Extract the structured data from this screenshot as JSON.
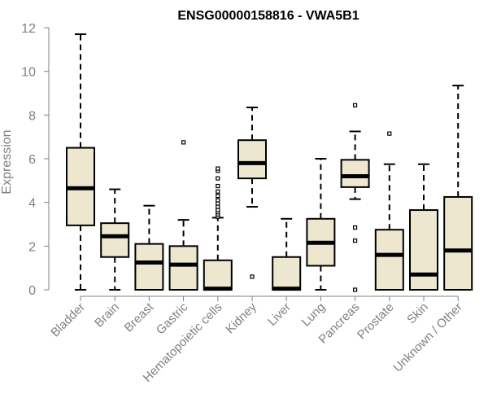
{
  "chart_data": {
    "type": "boxplot",
    "title": "ENSG00000158816 - VWA5B1",
    "xlabel": "",
    "ylabel": "Expression",
    "ylim": [
      0,
      12
    ],
    "yticks": [
      0,
      2,
      4,
      6,
      8,
      10,
      12
    ],
    "box_fill": "#ede7cf",
    "box_stroke": "#000000",
    "axis_color": "#808080",
    "categories": [
      {
        "name": "Bladder",
        "whisker_low": 0,
        "q1": 2.95,
        "median": 4.65,
        "q3": 6.5,
        "whisker_high": 11.7,
        "outliers": []
      },
      {
        "name": "Brain",
        "whisker_low": 0,
        "q1": 1.5,
        "median": 2.45,
        "q3": 3.05,
        "whisker_high": 4.6,
        "outliers": []
      },
      {
        "name": "Breast",
        "whisker_low": 0,
        "q1": 0,
        "median": 1.25,
        "q3": 2.1,
        "whisker_high": 3.85,
        "outliers": []
      },
      {
        "name": "Gastric",
        "whisker_low": 0,
        "q1": 0,
        "median": 1.15,
        "q3": 2.0,
        "whisker_high": 3.2,
        "outliers": [
          6.75
        ]
      },
      {
        "name": "Hematopoietic cells",
        "whisker_low": 0,
        "q1": 0,
        "median": 0.05,
        "q3": 1.35,
        "whisker_high": 3.3,
        "outliers": [
          3.35,
          3.45,
          3.55,
          3.65,
          3.8,
          3.95,
          4.1,
          4.3,
          4.5,
          4.75,
          5.1,
          5.45,
          5.55
        ]
      },
      {
        "name": "Kidney",
        "whisker_low": 3.8,
        "q1": 5.1,
        "median": 5.8,
        "q3": 6.85,
        "whisker_high": 8.35,
        "outliers": [
          0.6
        ]
      },
      {
        "name": "Liver",
        "whisker_low": 0,
        "q1": 0,
        "median": 0.05,
        "q3": 1.5,
        "whisker_high": 3.25,
        "outliers": []
      },
      {
        "name": "Lung",
        "whisker_low": 0,
        "q1": 1.1,
        "median": 2.15,
        "q3": 3.25,
        "whisker_high": 6.0,
        "outliers": []
      },
      {
        "name": "Pancreas",
        "whisker_low": 4.15,
        "q1": 4.7,
        "median": 5.2,
        "q3": 5.95,
        "whisker_high": 7.25,
        "outliers": [
          8.45,
          2.85,
          2.25,
          0
        ]
      },
      {
        "name": "Prostate",
        "whisker_low": 0,
        "q1": 0,
        "median": 1.6,
        "q3": 2.75,
        "whisker_high": 5.75,
        "outliers": [
          7.15
        ]
      },
      {
        "name": "Skin",
        "whisker_low": 0,
        "q1": 0,
        "median": 0.7,
        "q3": 3.65,
        "whisker_high": 5.75,
        "outliers": []
      },
      {
        "name": "Unknown / Other",
        "whisker_low": 0,
        "q1": 0,
        "median": 1.8,
        "q3": 4.25,
        "whisker_high": 9.35,
        "outliers": []
      }
    ]
  }
}
